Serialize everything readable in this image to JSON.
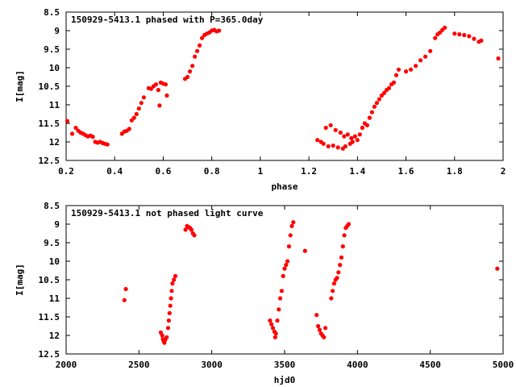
{
  "chart_data": [
    {
      "type": "scatter",
      "title": "150929-5413.1 phased with P=365.0day",
      "xlabel": "phase",
      "ylabel": "I[mag]",
      "xlim": [
        0.2,
        2.0
      ],
      "ylim": [
        12.5,
        8.5
      ],
      "y_inverted": true,
      "xticks": [
        "0.2",
        "0.4",
        "0.6",
        "0.8",
        "1",
        "1.2",
        "1.4",
        "1.6",
        "1.8",
        "2"
      ],
      "xtick_values": [
        0.2,
        0.4,
        0.6,
        0.8,
        1.0,
        1.2,
        1.4,
        1.6,
        1.8,
        2.0
      ],
      "yticks": [
        "8.5",
        "9",
        "9.5",
        "10",
        "10.5",
        "11",
        "11.5",
        "12",
        "12.5"
      ],
      "ytick_values": [
        8.5,
        9,
        9.5,
        10,
        10.5,
        11,
        11.5,
        12,
        12.5
      ],
      "grid": false,
      "marker_color": "#ff0000",
      "points": [
        [
          0.205,
          11.44
        ],
        [
          0.225,
          11.78
        ],
        [
          0.24,
          11.62
        ],
        [
          0.25,
          11.7
        ],
        [
          0.26,
          11.75
        ],
        [
          0.27,
          11.78
        ],
        [
          0.28,
          11.82
        ],
        [
          0.29,
          11.85
        ],
        [
          0.3,
          11.83
        ],
        [
          0.31,
          11.86
        ],
        [
          0.32,
          12.0
        ],
        [
          0.33,
          12.02
        ],
        [
          0.34,
          12.0
        ],
        [
          0.35,
          12.03
        ],
        [
          0.36,
          12.05
        ],
        [
          0.37,
          12.07
        ],
        [
          0.43,
          11.78
        ],
        [
          0.44,
          11.72
        ],
        [
          0.45,
          11.7
        ],
        [
          0.46,
          11.65
        ],
        [
          0.47,
          11.42
        ],
        [
          0.48,
          11.35
        ],
        [
          0.49,
          11.25
        ],
        [
          0.5,
          11.1
        ],
        [
          0.51,
          10.95
        ],
        [
          0.52,
          10.8
        ],
        [
          0.54,
          10.55
        ],
        [
          0.55,
          10.57
        ],
        [
          0.56,
          10.5
        ],
        [
          0.57,
          10.45
        ],
        [
          0.58,
          10.6
        ],
        [
          0.585,
          11.02
        ],
        [
          0.59,
          10.4
        ],
        [
          0.6,
          10.43
        ],
        [
          0.61,
          10.45
        ],
        [
          0.615,
          10.75
        ],
        [
          0.69,
          10.3
        ],
        [
          0.7,
          10.25
        ],
        [
          0.71,
          10.1
        ],
        [
          0.72,
          9.95
        ],
        [
          0.73,
          9.7
        ],
        [
          0.74,
          9.55
        ],
        [
          0.75,
          9.4
        ],
        [
          0.76,
          9.2
        ],
        [
          0.77,
          9.12
        ],
        [
          0.78,
          9.08
        ],
        [
          0.79,
          9.05
        ],
        [
          0.8,
          9.0
        ],
        [
          0.81,
          8.98
        ],
        [
          0.82,
          9.02
        ],
        [
          0.83,
          9.0
        ],
        [
          1.235,
          11.95
        ],
        [
          1.25,
          12.0
        ],
        [
          1.26,
          12.05
        ],
        [
          1.27,
          11.62
        ],
        [
          1.28,
          12.12
        ],
        [
          1.29,
          11.55
        ],
        [
          1.3,
          12.1
        ],
        [
          1.31,
          11.68
        ],
        [
          1.32,
          12.15
        ],
        [
          1.33,
          11.75
        ],
        [
          1.34,
          12.18
        ],
        [
          1.345,
          11.85
        ],
        [
          1.35,
          12.12
        ],
        [
          1.36,
          11.8
        ],
        [
          1.37,
          12.05
        ],
        [
          1.375,
          11.9
        ],
        [
          1.38,
          12.0
        ],
        [
          1.39,
          11.85
        ],
        [
          1.4,
          11.95
        ],
        [
          1.41,
          11.8
        ],
        [
          1.42,
          11.62
        ],
        [
          1.43,
          11.5
        ],
        [
          1.44,
          11.55
        ],
        [
          1.45,
          11.35
        ],
        [
          1.46,
          11.2
        ],
        [
          1.47,
          11.05
        ],
        [
          1.48,
          10.95
        ],
        [
          1.49,
          10.85
        ],
        [
          1.5,
          10.75
        ],
        [
          1.51,
          10.68
        ],
        [
          1.52,
          10.6
        ],
        [
          1.53,
          10.55
        ],
        [
          1.54,
          10.45
        ],
        [
          1.55,
          10.4
        ],
        [
          1.56,
          10.2
        ],
        [
          1.57,
          10.05
        ],
        [
          1.6,
          10.1
        ],
        [
          1.62,
          10.05
        ],
        [
          1.64,
          9.95
        ],
        [
          1.66,
          9.8
        ],
        [
          1.68,
          9.7
        ],
        [
          1.7,
          9.55
        ],
        [
          1.72,
          9.2
        ],
        [
          1.73,
          9.1
        ],
        [
          1.74,
          9.05
        ],
        [
          1.75,
          8.98
        ],
        [
          1.76,
          8.92
        ],
        [
          1.8,
          9.08
        ],
        [
          1.82,
          9.1
        ],
        [
          1.84,
          9.12
        ],
        [
          1.86,
          9.15
        ],
        [
          1.88,
          9.22
        ],
        [
          1.9,
          9.3
        ],
        [
          1.91,
          9.27
        ],
        [
          1.98,
          9.75
        ]
      ]
    },
    {
      "type": "scatter",
      "title": "150929-5413.1 not phased light curve",
      "xlabel": "hjd0",
      "ylabel": "I[mag]",
      "xlim": [
        2000,
        5000
      ],
      "ylim": [
        12.5,
        8.5
      ],
      "y_inverted": true,
      "xticks": [
        "2000",
        "2500",
        "3000",
        "3500",
        "4000",
        "4500",
        "5000"
      ],
      "xtick_values": [
        2000,
        2500,
        3000,
        3500,
        4000,
        4500,
        5000
      ],
      "yticks": [
        "8.5",
        "9",
        "9.5",
        "10",
        "10.5",
        "11",
        "11.5",
        "12",
        "12.5"
      ],
      "ytick_values": [
        8.5,
        9,
        9.5,
        10,
        10.5,
        11,
        11.5,
        12,
        12.5
      ],
      "grid": false,
      "marker_color": "#ff0000",
      "points": [
        [
          2400,
          11.05
        ],
        [
          2410,
          10.75
        ],
        [
          2650,
          11.92
        ],
        [
          2660,
          12.0
        ],
        [
          2665,
          12.1
        ],
        [
          2670,
          12.15
        ],
        [
          2675,
          12.2
        ],
        [
          2680,
          12.12
        ],
        [
          2690,
          12.05
        ],
        [
          2700,
          11.8
        ],
        [
          2705,
          11.6
        ],
        [
          2710,
          11.4
        ],
        [
          2715,
          11.2
        ],
        [
          2720,
          11.0
        ],
        [
          2725,
          10.8
        ],
        [
          2730,
          10.6
        ],
        [
          2740,
          10.5
        ],
        [
          2750,
          10.4
        ],
        [
          2820,
          9.15
        ],
        [
          2830,
          9.05
        ],
        [
          2840,
          9.08
        ],
        [
          2850,
          9.1
        ],
        [
          2860,
          9.15
        ],
        [
          2870,
          9.25
        ],
        [
          2880,
          9.3
        ],
        [
          3400,
          11.6
        ],
        [
          3410,
          11.7
        ],
        [
          3420,
          11.8
        ],
        [
          3430,
          11.9
        ],
        [
          3435,
          12.05
        ],
        [
          3440,
          11.95
        ],
        [
          3450,
          11.6
        ],
        [
          3460,
          11.3
        ],
        [
          3470,
          11.0
        ],
        [
          3480,
          10.8
        ],
        [
          3490,
          10.4
        ],
        [
          3500,
          10.2
        ],
        [
          3510,
          10.1
        ],
        [
          3520,
          10.0
        ],
        [
          3530,
          9.6
        ],
        [
          3540,
          9.3
        ],
        [
          3550,
          9.05
        ],
        [
          3560,
          8.95
        ],
        [
          3640,
          9.72
        ],
        [
          3720,
          11.45
        ],
        [
          3730,
          11.75
        ],
        [
          3740,
          11.85
        ],
        [
          3750,
          11.95
        ],
        [
          3760,
          12.0
        ],
        [
          3770,
          12.05
        ],
        [
          3780,
          11.8
        ],
        [
          3820,
          11.0
        ],
        [
          3830,
          10.8
        ],
        [
          3840,
          10.6
        ],
        [
          3850,
          10.5
        ],
        [
          3860,
          10.45
        ],
        [
          3870,
          10.3
        ],
        [
          3880,
          10.1
        ],
        [
          3890,
          9.9
        ],
        [
          3900,
          9.6
        ],
        [
          3910,
          9.3
        ],
        [
          3920,
          9.1
        ],
        [
          3930,
          9.05
        ],
        [
          3940,
          9.0
        ],
        [
          4960,
          10.2
        ]
      ]
    }
  ]
}
